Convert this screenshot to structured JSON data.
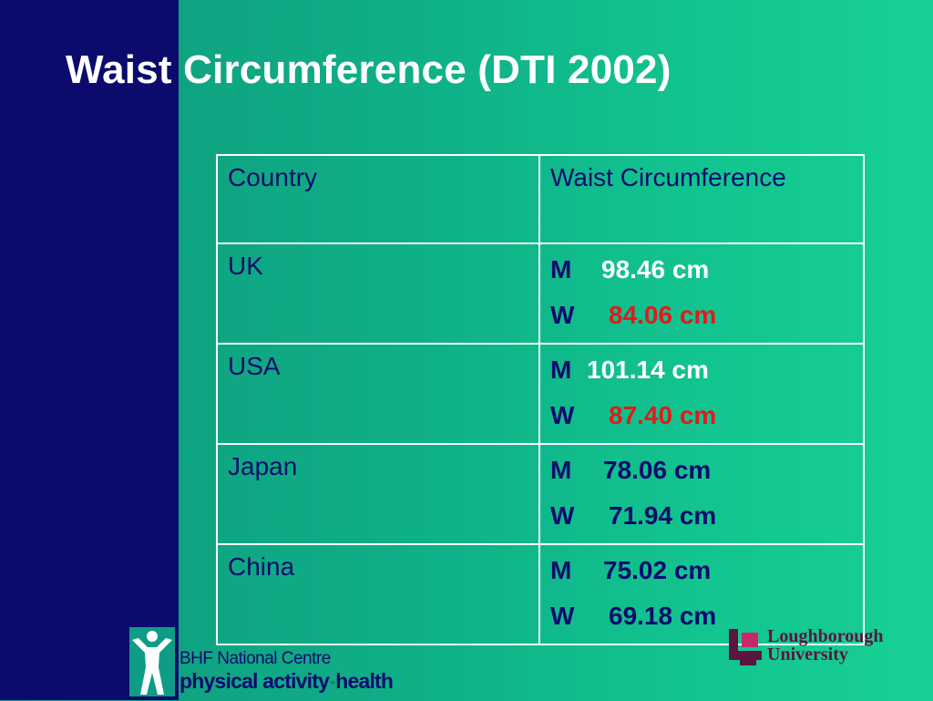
{
  "slide": {
    "title": "Waist Circumference (DTI 2002)"
  },
  "table": {
    "headers": [
      "Country",
      "Waist Circumference"
    ],
    "rows": [
      {
        "country": "UK",
        "m_label": "M",
        "m_value": "98.46 cm",
        "w_label": "W",
        "w_value": "84.06 cm"
      },
      {
        "country": "USA",
        "m_label": "M",
        "m_value": "101.14 cm",
        "w_label": "W",
        "w_value": "87.40 cm"
      },
      {
        "country": "Japan",
        "m_label": "M",
        "m_value": "78.06 cm",
        "w_label": "W",
        "w_value": "71.94 cm"
      },
      {
        "country": "China",
        "m_label": "M",
        "m_value": "75.02 cm",
        "w_label": "W",
        "w_value": "69.18 cm"
      }
    ]
  },
  "logos": {
    "bhf": {
      "line1": "BHF National Centre",
      "line2a": "physical activity",
      "line2b": "health"
    },
    "loughborough": {
      "line1": "Loughborough",
      "line2": "University"
    }
  },
  "colors": {
    "navy": "#0b0b6e",
    "teal_background": "#12c48f",
    "highlight_red": "#e11b1b",
    "white": "#ffffff",
    "loughborough_purple": "#5a1540"
  }
}
